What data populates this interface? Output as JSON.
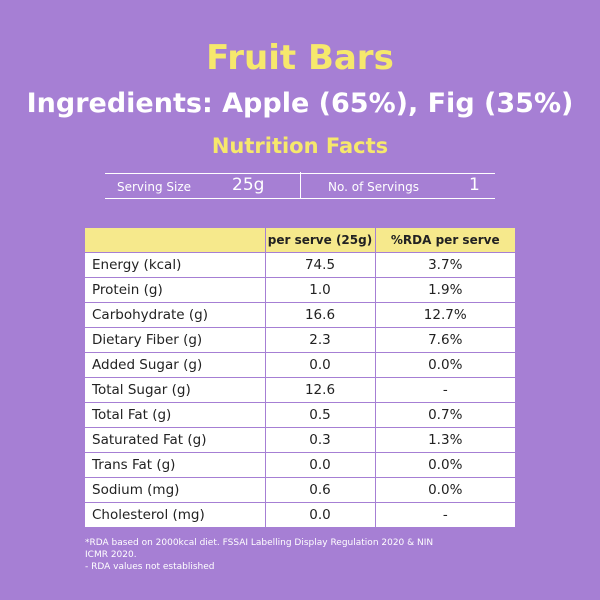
{
  "header": {
    "title": "Fruit Bars",
    "ingredients": "Ingredients: Apple (65%), Fig (35%)",
    "subtitle": "Nutrition Facts"
  },
  "serving": {
    "size_label": "Serving Size",
    "size": "25g",
    "count_label": "No. of Servings",
    "count": "1"
  },
  "table": {
    "columns": [
      "",
      "per serve (25g)",
      "%RDA per serve"
    ],
    "rows": [
      [
        "Energy (kcal)",
        "74.5",
        "3.7%"
      ],
      [
        "Protein (g)",
        "1.0",
        "1.9%"
      ],
      [
        "Carbohydrate (g)",
        "16.6",
        "12.7%"
      ],
      [
        "Dietary Fiber (g)",
        "2.3",
        "7.6%"
      ],
      [
        "Added Sugar (g)",
        "0.0",
        "0.0%"
      ],
      [
        "Total Sugar (g)",
        "12.6",
        "-"
      ],
      [
        "Total Fat (g)",
        "0.5",
        "0.7%"
      ],
      [
        "Saturated Fat (g)",
        "0.3",
        "1.3%"
      ],
      [
        "Trans Fat (g)",
        "0.0",
        "0.0%"
      ],
      [
        "Sodium (mg)",
        "0.6",
        "0.0%"
      ],
      [
        "Cholesterol (mg)",
        "0.0",
        "-"
      ]
    ]
  },
  "footnotes": [
    "*RDA based on 2000kcal diet. FSSAI Labelling Display Regulation 2020 & NIN ICMR 2020.",
    "- RDA values not established"
  ]
}
